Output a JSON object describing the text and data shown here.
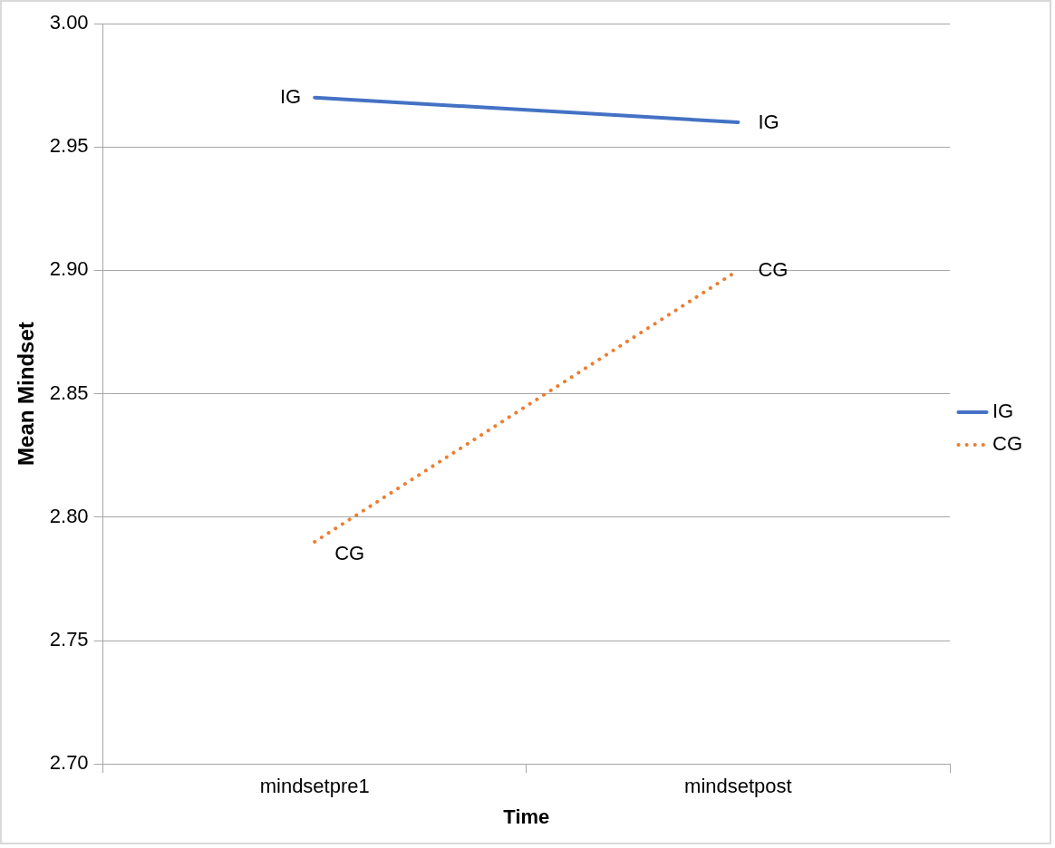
{
  "chart_data": {
    "type": "line",
    "xlabel": "Time",
    "ylabel": "Mean Mindset",
    "categories": [
      "mindsetpre1",
      "mindsetpost"
    ],
    "series": [
      {
        "name": "IG",
        "color": "#4472c4",
        "values": [
          2.97,
          2.96
        ],
        "line_style": "solid"
      },
      {
        "name": "CG",
        "color": "#ed7d31",
        "values": [
          2.79,
          2.9
        ],
        "line_style": "dotted"
      }
    ],
    "ylim": [
      2.7,
      3.0
    ],
    "yticks": [
      {
        "value": 2.7,
        "label": "2.70"
      },
      {
        "value": 2.75,
        "label": "2.75"
      },
      {
        "value": 2.8,
        "label": "2.80"
      },
      {
        "value": 2.85,
        "label": "2.85"
      },
      {
        "value": 2.9,
        "label": "2.90"
      },
      {
        "value": 2.95,
        "label": "2.95"
      },
      {
        "value": 3.0,
        "label": "3.00"
      }
    ],
    "grid": "y",
    "legend": "right",
    "marker": "none",
    "annotations": [
      {
        "text": "IG",
        "x": "mindsetpre1",
        "y": 2.97
      },
      {
        "text": "IG",
        "x": "mindsetpost",
        "y": 2.96
      },
      {
        "text": "CG",
        "x": "mindsetpre1",
        "y": 2.79
      },
      {
        "text": "CG",
        "x": "mindsetpost",
        "y": 2.9
      }
    ]
  }
}
